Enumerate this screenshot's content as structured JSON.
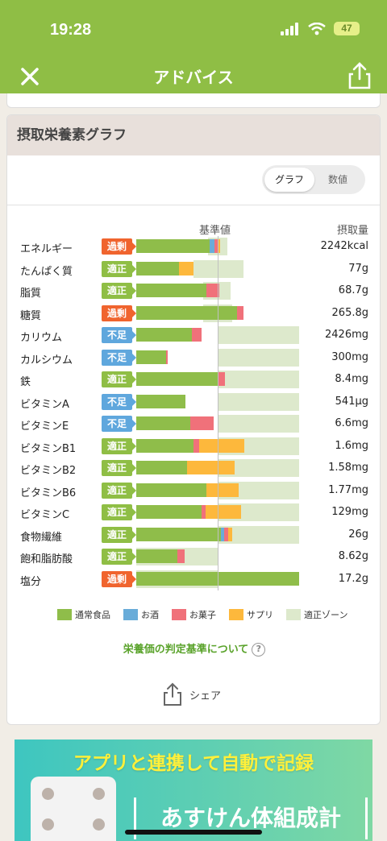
{
  "status": {
    "time": "19:28",
    "battery": "47"
  },
  "nav": {
    "title": "アドバイス"
  },
  "card": {
    "title": "摂取栄養素グラフ"
  },
  "toggle": {
    "graph": "グラフ",
    "numeric": "数値"
  },
  "headers": {
    "base": "基準値",
    "intake": "摂取量"
  },
  "colors": {
    "normal": "#8fbd4a",
    "alcohol": "#69acd9",
    "sweets": "#f0717a",
    "supplement": "#fdb83c",
    "zone": "#dde9cc",
    "over": "#f0642e",
    "ok": "#8fbe45",
    "under": "#5fa7dd"
  },
  "chart_data": {
    "type": "bar",
    "reference_label": "基準値",
    "series_order": [
      "通常食品",
      "お酒",
      "お菓子",
      "サプリ"
    ],
    "rows": [
      {
        "name": "エネルギー",
        "status": "過剰",
        "value": "2242kcal",
        "zone": [
          0.88,
          1.12
        ],
        "segments": [
          0.9,
          0.06,
          0.04,
          0.03
        ]
      },
      {
        "name": "たんぱく質",
        "status": "適正",
        "value": "77g",
        "zone": [
          0.7,
          1.32
        ],
        "segments": [
          0.52,
          0.0,
          0.0,
          0.18
        ]
      },
      {
        "name": "脂質",
        "status": "適正",
        "value": "68.7g",
        "zone": [
          0.82,
          1.16
        ],
        "segments": [
          0.86,
          0.0,
          0.16,
          0.0
        ]
      },
      {
        "name": "糖質",
        "status": "過剰",
        "value": "265.8g",
        "zone": [
          0.82,
          1.18
        ],
        "segments": [
          1.24,
          0.0,
          0.08,
          0.0
        ]
      },
      {
        "name": "カリウム",
        "status": "不足",
        "value": "2426mg",
        "zone": [
          1.0,
          2.0
        ],
        "segments": [
          0.68,
          0.0,
          0.12,
          0.0
        ]
      },
      {
        "name": "カルシウム",
        "status": "不足",
        "value": "300mg",
        "zone": [
          1.0,
          2.0
        ],
        "segments": [
          0.37,
          0.0,
          0.02,
          0.0
        ]
      },
      {
        "name": "鉄",
        "status": "適正",
        "value": "8.4mg",
        "zone": [
          1.0,
          2.0
        ],
        "segments": [
          1.0,
          0.0,
          0.09,
          0.0
        ]
      },
      {
        "name": "ビタミンA",
        "status": "不足",
        "value": "541μg",
        "zone": [
          1.0,
          2.0
        ],
        "segments": [
          0.6,
          0.0,
          0.0,
          0.0
        ]
      },
      {
        "name": "ビタミンE",
        "status": "不足",
        "value": "6.6mg",
        "zone": [
          1.0,
          2.0
        ],
        "segments": [
          0.66,
          0.0,
          0.29,
          0.0
        ]
      },
      {
        "name": "ビタミンB1",
        "status": "適正",
        "value": "1.6mg",
        "zone": [
          1.0,
          2.0
        ],
        "segments": [
          0.7,
          0.0,
          0.07,
          0.56
        ]
      },
      {
        "name": "ビタミンB2",
        "status": "適正",
        "value": "1.58mg",
        "zone": [
          1.0,
          2.0
        ],
        "segments": [
          0.62,
          0.0,
          0.0,
          0.59
        ]
      },
      {
        "name": "ビタミンB6",
        "status": "適正",
        "value": "1.77mg",
        "zone": [
          1.0,
          2.0
        ],
        "segments": [
          0.86,
          0.0,
          0.0,
          0.4
        ]
      },
      {
        "name": "ビタミンC",
        "status": "適正",
        "value": "129mg",
        "zone": [
          1.0,
          2.0
        ],
        "segments": [
          0.8,
          0.0,
          0.05,
          0.44
        ]
      },
      {
        "name": "食物繊維",
        "status": "適正",
        "value": "26g",
        "zone": [
          1.0,
          2.0
        ],
        "segments": [
          1.04,
          0.04,
          0.05,
          0.05
        ]
      },
      {
        "name": "飽和脂肪酸",
        "status": "適正",
        "value": "8.62g",
        "zone": [
          0.0,
          1.0
        ],
        "segments": [
          0.5,
          0.0,
          0.09,
          0.0
        ]
      },
      {
        "name": "塩分",
        "status": "過剰",
        "value": "17.2g",
        "zone": [
          0.0,
          1.0
        ],
        "segments": [
          2.0,
          0.0,
          0.0,
          0.0
        ]
      }
    ]
  },
  "legend": [
    {
      "label": "通常食品",
      "color": "#8fbd4a"
    },
    {
      "label": "お酒",
      "color": "#69acd9"
    },
    {
      "label": "お菓子",
      "color": "#f0717a"
    },
    {
      "label": "サプリ",
      "color": "#fdb83c"
    },
    {
      "label": "適正ゾーン",
      "color": "#dde9cc"
    }
  ],
  "criteria": {
    "label": "栄養価の判定基準について",
    "help": "?"
  },
  "share": {
    "label": "シェア"
  },
  "banner": {
    "headline": "アプリと連携して自動で記録",
    "product": "あすけん体組成計"
  }
}
